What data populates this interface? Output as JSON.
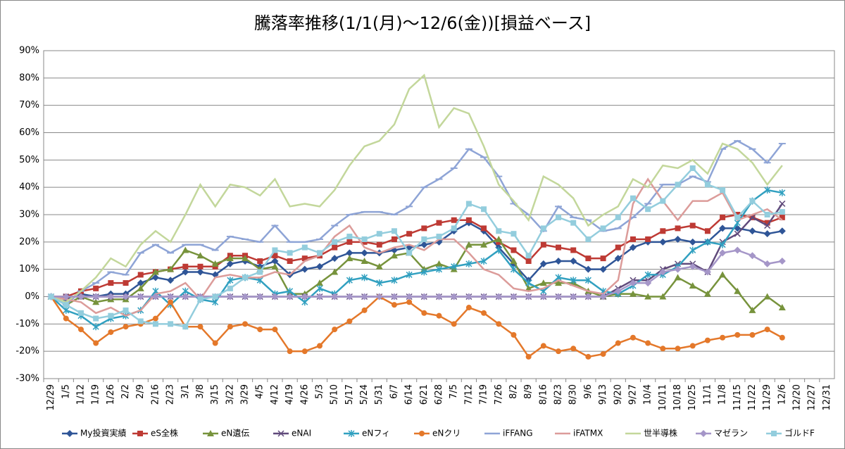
{
  "chart_data": {
    "type": "line",
    "title": "騰落率推移(1/1(月)～12/6(金))[損益ベース]",
    "categories": [
      "12/29",
      "1/5",
      "1/12",
      "1/19",
      "1/26",
      "2/2",
      "2/9",
      "2/16",
      "2/23",
      "3/1",
      "3/8",
      "3/15",
      "3/22",
      "3/29",
      "4/5",
      "4/12",
      "4/19",
      "4/26",
      "5/3",
      "5/10",
      "5/17",
      "5/24",
      "5/31",
      "6/7",
      "6/14",
      "6/21",
      "6/28",
      "7/5",
      "7/12",
      "7/19",
      "7/26",
      "8/2",
      "8/9",
      "8/16",
      "8/23",
      "8/30",
      "9/6",
      "9/13",
      "9/20",
      "9/27",
      "10/4",
      "10/11",
      "10/18",
      "10/25",
      "11/1",
      "11/8",
      "11/15",
      "11/22",
      "11/29",
      "12/6",
      "12/20",
      "12/27",
      "12/31"
    ],
    "ylim": [
      -30,
      90
    ],
    "yticks": [
      {
        "value": -30,
        "label": "-30%"
      },
      {
        "value": -20,
        "label": "-20%"
      },
      {
        "value": -10,
        "label": "-10%"
      },
      {
        "value": 0,
        "label": "0%"
      },
      {
        "value": 10,
        "label": "10%"
      },
      {
        "value": 20,
        "label": "20%"
      },
      {
        "value": 30,
        "label": "30%"
      },
      {
        "value": 40,
        "label": "40%"
      },
      {
        "value": 50,
        "label": "50%"
      },
      {
        "value": 60,
        "label": "60%"
      },
      {
        "value": 70,
        "label": "70%"
      },
      {
        "value": 80,
        "label": "80%"
      },
      {
        "value": 90,
        "label": "90%"
      }
    ],
    "grid": true,
    "legend": "bottom",
    "series": [
      {
        "name": "My投資実績",
        "color": "#2f5597",
        "marker": "diamond",
        "values": [
          0,
          -1,
          1,
          0,
          1,
          1,
          5,
          7,
          6,
          9,
          9,
          8,
          12,
          13,
          11,
          13,
          8,
          10,
          11,
          14,
          16,
          16,
          16,
          17,
          18,
          19,
          20,
          24,
          27,
          24,
          18,
          12,
          6,
          12,
          13,
          13,
          10,
          10,
          14,
          18,
          20,
          20,
          21,
          20,
          20,
          25,
          25,
          24,
          23,
          24,
          null,
          null,
          null
        ]
      },
      {
        "name": "eS全株",
        "color": "#be3a34",
        "marker": "square",
        "values": [
          0,
          0,
          2,
          3,
          5,
          5,
          8,
          9,
          10,
          11,
          11,
          11,
          15,
          15,
          13,
          15,
          13,
          14,
          15,
          18,
          20,
          20,
          19,
          21,
          23,
          25,
          27,
          28,
          28,
          25,
          20,
          17,
          13,
          19,
          18,
          17,
          14,
          14,
          18,
          21,
          21,
          24,
          25,
          26,
          24,
          29,
          30,
          29,
          27,
          29,
          null,
          null,
          null
        ]
      },
      {
        "name": "eN遺伝",
        "color": "#77933c",
        "marker": "triangle",
        "values": [
          0,
          -3,
          0,
          -2,
          -1,
          -1,
          3,
          9,
          10,
          17,
          15,
          12,
          14,
          14,
          10,
          11,
          1,
          1,
          5,
          9,
          14,
          13,
          11,
          15,
          16,
          10,
          12,
          10,
          19,
          19,
          21,
          13,
          3,
          5,
          5,
          5,
          2,
          0,
          1,
          1,
          0,
          0,
          7,
          4,
          1,
          8,
          2,
          -5,
          0,
          -4,
          null,
          null,
          null
        ]
      },
      {
        "name": "eNAI",
        "color": "#604a7b",
        "marker": "x",
        "values": [
          0,
          0,
          0,
          0,
          0,
          0,
          0,
          0,
          0,
          0,
          0,
          0,
          0,
          0,
          0,
          0,
          0,
          0,
          0,
          0,
          0,
          0,
          0,
          0,
          0,
          0,
          0,
          0,
          0,
          0,
          0,
          0,
          0,
          0,
          0,
          0,
          0,
          0,
          3,
          6,
          6,
          10,
          12,
          12,
          9,
          20,
          23,
          29,
          26,
          34,
          null,
          null,
          null
        ]
      },
      {
        "name": "eNフィ",
        "color": "#31a0c0",
        "marker": "star",
        "values": [
          0,
          -5,
          -7,
          -11,
          -8,
          -7,
          -5,
          2,
          -3,
          2,
          -1,
          -2,
          6,
          7,
          6,
          1,
          2,
          -2,
          3,
          1,
          6,
          7,
          5,
          6,
          8,
          9,
          10,
          11,
          12,
          13,
          17,
          10,
          5,
          2,
          7,
          6,
          6,
          2,
          1,
          4,
          8,
          8,
          11,
          17,
          20,
          19,
          27,
          35,
          39,
          38,
          null,
          null,
          null
        ]
      },
      {
        "name": "eNクリ",
        "color": "#e4782a",
        "marker": "circle",
        "values": [
          0,
          -8,
          -12,
          -17,
          -13,
          -11,
          -10,
          -8,
          -2,
          -11,
          -11,
          -17,
          -11,
          -10,
          -12,
          -12,
          -20,
          -20,
          -18,
          -12,
          -9,
          -5,
          0,
          -3,
          -2,
          -6,
          -7,
          -10,
          -4,
          -6,
          -10,
          -14,
          -22,
          -18,
          -20,
          -19,
          -22,
          -21,
          -17,
          -15,
          -17,
          -19,
          -19,
          -18,
          -16,
          -15,
          -14,
          -14,
          -12,
          -15,
          null,
          null,
          null
        ]
      },
      {
        "name": "iFFANG",
        "color": "#8ea4d6",
        "marker": "dash",
        "values": [
          0,
          -3,
          2,
          5,
          9,
          8,
          16,
          19,
          16,
          19,
          19,
          17,
          22,
          21,
          20,
          26,
          20,
          20,
          21,
          26,
          30,
          31,
          31,
          30,
          33,
          40,
          43,
          47,
          54,
          51,
          44,
          34,
          30,
          24,
          33,
          29,
          28,
          24,
          25,
          29,
          34,
          41,
          41,
          44,
          42,
          54,
          57,
          54,
          49,
          56,
          null,
          null,
          null
        ]
      },
      {
        "name": "iFATMX",
        "color": "#dc9c9a",
        "marker": "none",
        "values": [
          0,
          -1,
          -2,
          -6,
          -4,
          -7,
          -5,
          1,
          2,
          5,
          -1,
          7,
          8,
          7,
          7,
          9,
          8,
          13,
          15,
          22,
          26,
          18,
          16,
          18,
          19,
          17,
          21,
          21,
          16,
          10,
          8,
          3,
          2,
          3,
          6,
          4,
          2,
          1,
          6,
          34,
          43,
          35,
          28,
          35,
          35,
          38,
          28,
          30,
          32,
          28,
          null,
          null,
          null
        ]
      },
      {
        "name": "世半導株",
        "color": "#c3d79b",
        "marker": "none",
        "values": [
          0,
          -2,
          2,
          7,
          14,
          11,
          19,
          24,
          20,
          30,
          41,
          33,
          41,
          40,
          37,
          43,
          33,
          34,
          33,
          39,
          48,
          55,
          57,
          63,
          76,
          81,
          62,
          69,
          67,
          55,
          41,
          35,
          28,
          44,
          41,
          36,
          26,
          30,
          33,
          43,
          40,
          48,
          47,
          50,
          45,
          56,
          54,
          49,
          41,
          48,
          null,
          null,
          null
        ]
      },
      {
        "name": "マゼラン",
        "color": "#a596c8",
        "marker": "diamond",
        "values": [
          0,
          0,
          0,
          0,
          0,
          0,
          0,
          0,
          0,
          0,
          0,
          0,
          0,
          0,
          0,
          0,
          0,
          0,
          0,
          0,
          0,
          0,
          0,
          0,
          0,
          0,
          0,
          0,
          0,
          0,
          0,
          0,
          0,
          0,
          0,
          0,
          0,
          0,
          2,
          5,
          5,
          9,
          10,
          11,
          9,
          16,
          17,
          15,
          12,
          13,
          null,
          null,
          null
        ]
      },
      {
        "name": "ゴルドF",
        "color": "#93cddd",
        "marker": "square",
        "values": [
          0,
          -3,
          -6,
          -8,
          -7,
          -5,
          -9,
          -10,
          -10,
          -11,
          -1,
          0,
          3,
          7,
          9,
          17,
          16,
          18,
          16,
          20,
          22,
          21,
          23,
          24,
          16,
          21,
          22,
          25,
          34,
          32,
          24,
          23,
          15,
          25,
          29,
          27,
          21,
          25,
          29,
          36,
          32,
          35,
          41,
          47,
          41,
          39,
          29,
          35,
          30,
          31,
          null,
          null,
          null
        ]
      }
    ]
  }
}
